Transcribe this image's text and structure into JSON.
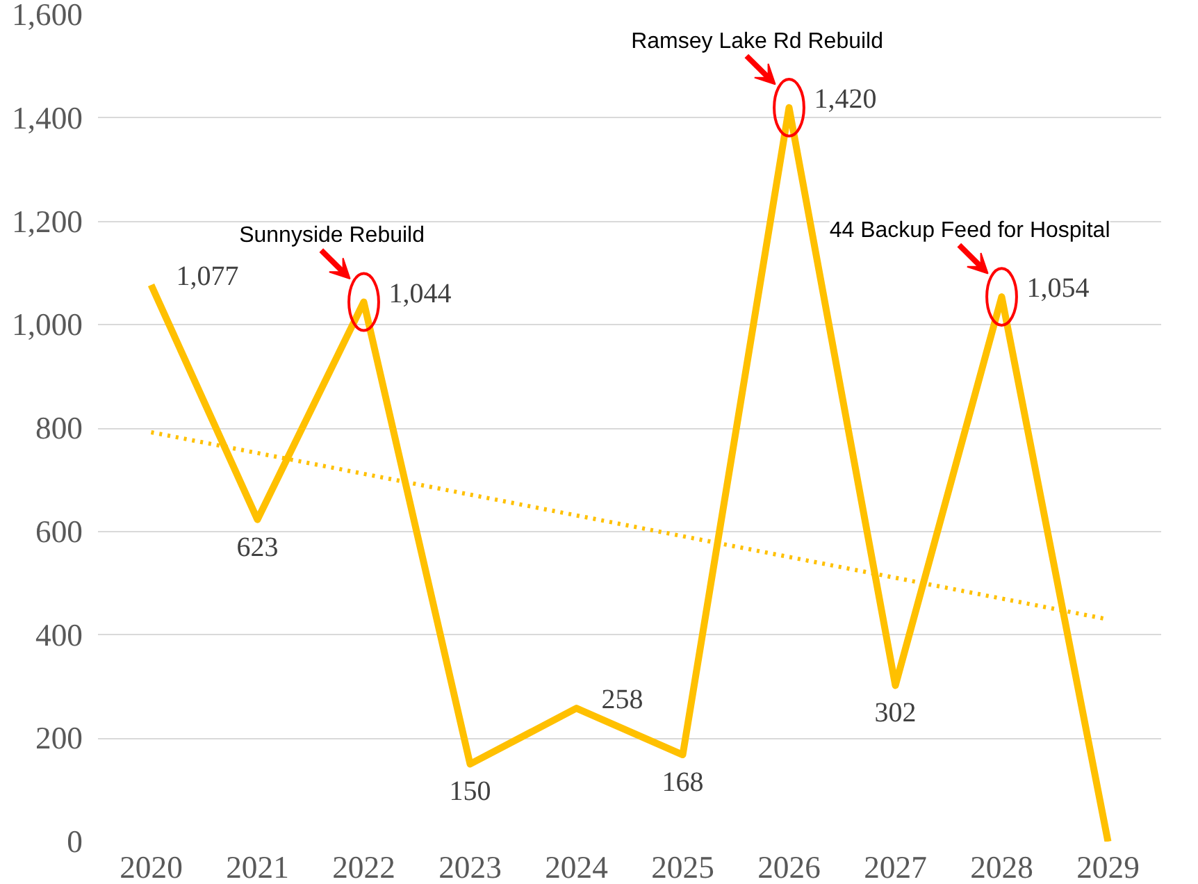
{
  "chart_data": {
    "type": "line",
    "x": [
      2020,
      2021,
      2022,
      2023,
      2024,
      2025,
      2026,
      2027,
      2028,
      2029
    ],
    "series": [
      {
        "color": "#ffc000",
        "values": [
          1077,
          623,
          1044,
          150,
          258,
          168,
          1420,
          302,
          1054,
          0
        ],
        "value_labels": [
          "1,077",
          "623",
          "1,044",
          "150",
          "258",
          "168",
          "1,420",
          "302",
          "1,054",
          null
        ]
      },
      {
        "color": "#ffc000",
        "line_style": "dotted",
        "x": [
          2020,
          2029
        ],
        "values": [
          792,
          430
        ]
      }
    ],
    "xlim": [
      2019.5,
      2029.5
    ],
    "xticks": [
      2020,
      2021,
      2022,
      2023,
      2024,
      2025,
      2026,
      2027,
      2028,
      2029
    ],
    "ylim": [
      0,
      1600
    ],
    "yticks": [
      0,
      {
        "value": 200,
        "label": "200"
      },
      {
        "value": 400,
        "label": "400"
      },
      {
        "value": 600,
        "label": "600"
      },
      {
        "value": 800,
        "label": "800"
      },
      {
        "value": 1000,
        "label": "1,000"
      },
      {
        "value": 1200,
        "label": "1,200"
      },
      {
        "value": 1400,
        "label": "1,400"
      },
      {
        "value": 1600,
        "label": "1,600"
      }
    ],
    "grid": "y",
    "marker": "none",
    "line_style": "solid",
    "annotations": [
      {
        "text": "Sunnyside Rebuild",
        "x": 2022,
        "y": 1044
      },
      {
        "text": "Ramsey Lake Rd Rebuild",
        "x": 2026,
        "y": 1420
      },
      {
        "text": "44 Backup Feed for Hospital",
        "x": 2028,
        "y": 1054
      }
    ]
  }
}
